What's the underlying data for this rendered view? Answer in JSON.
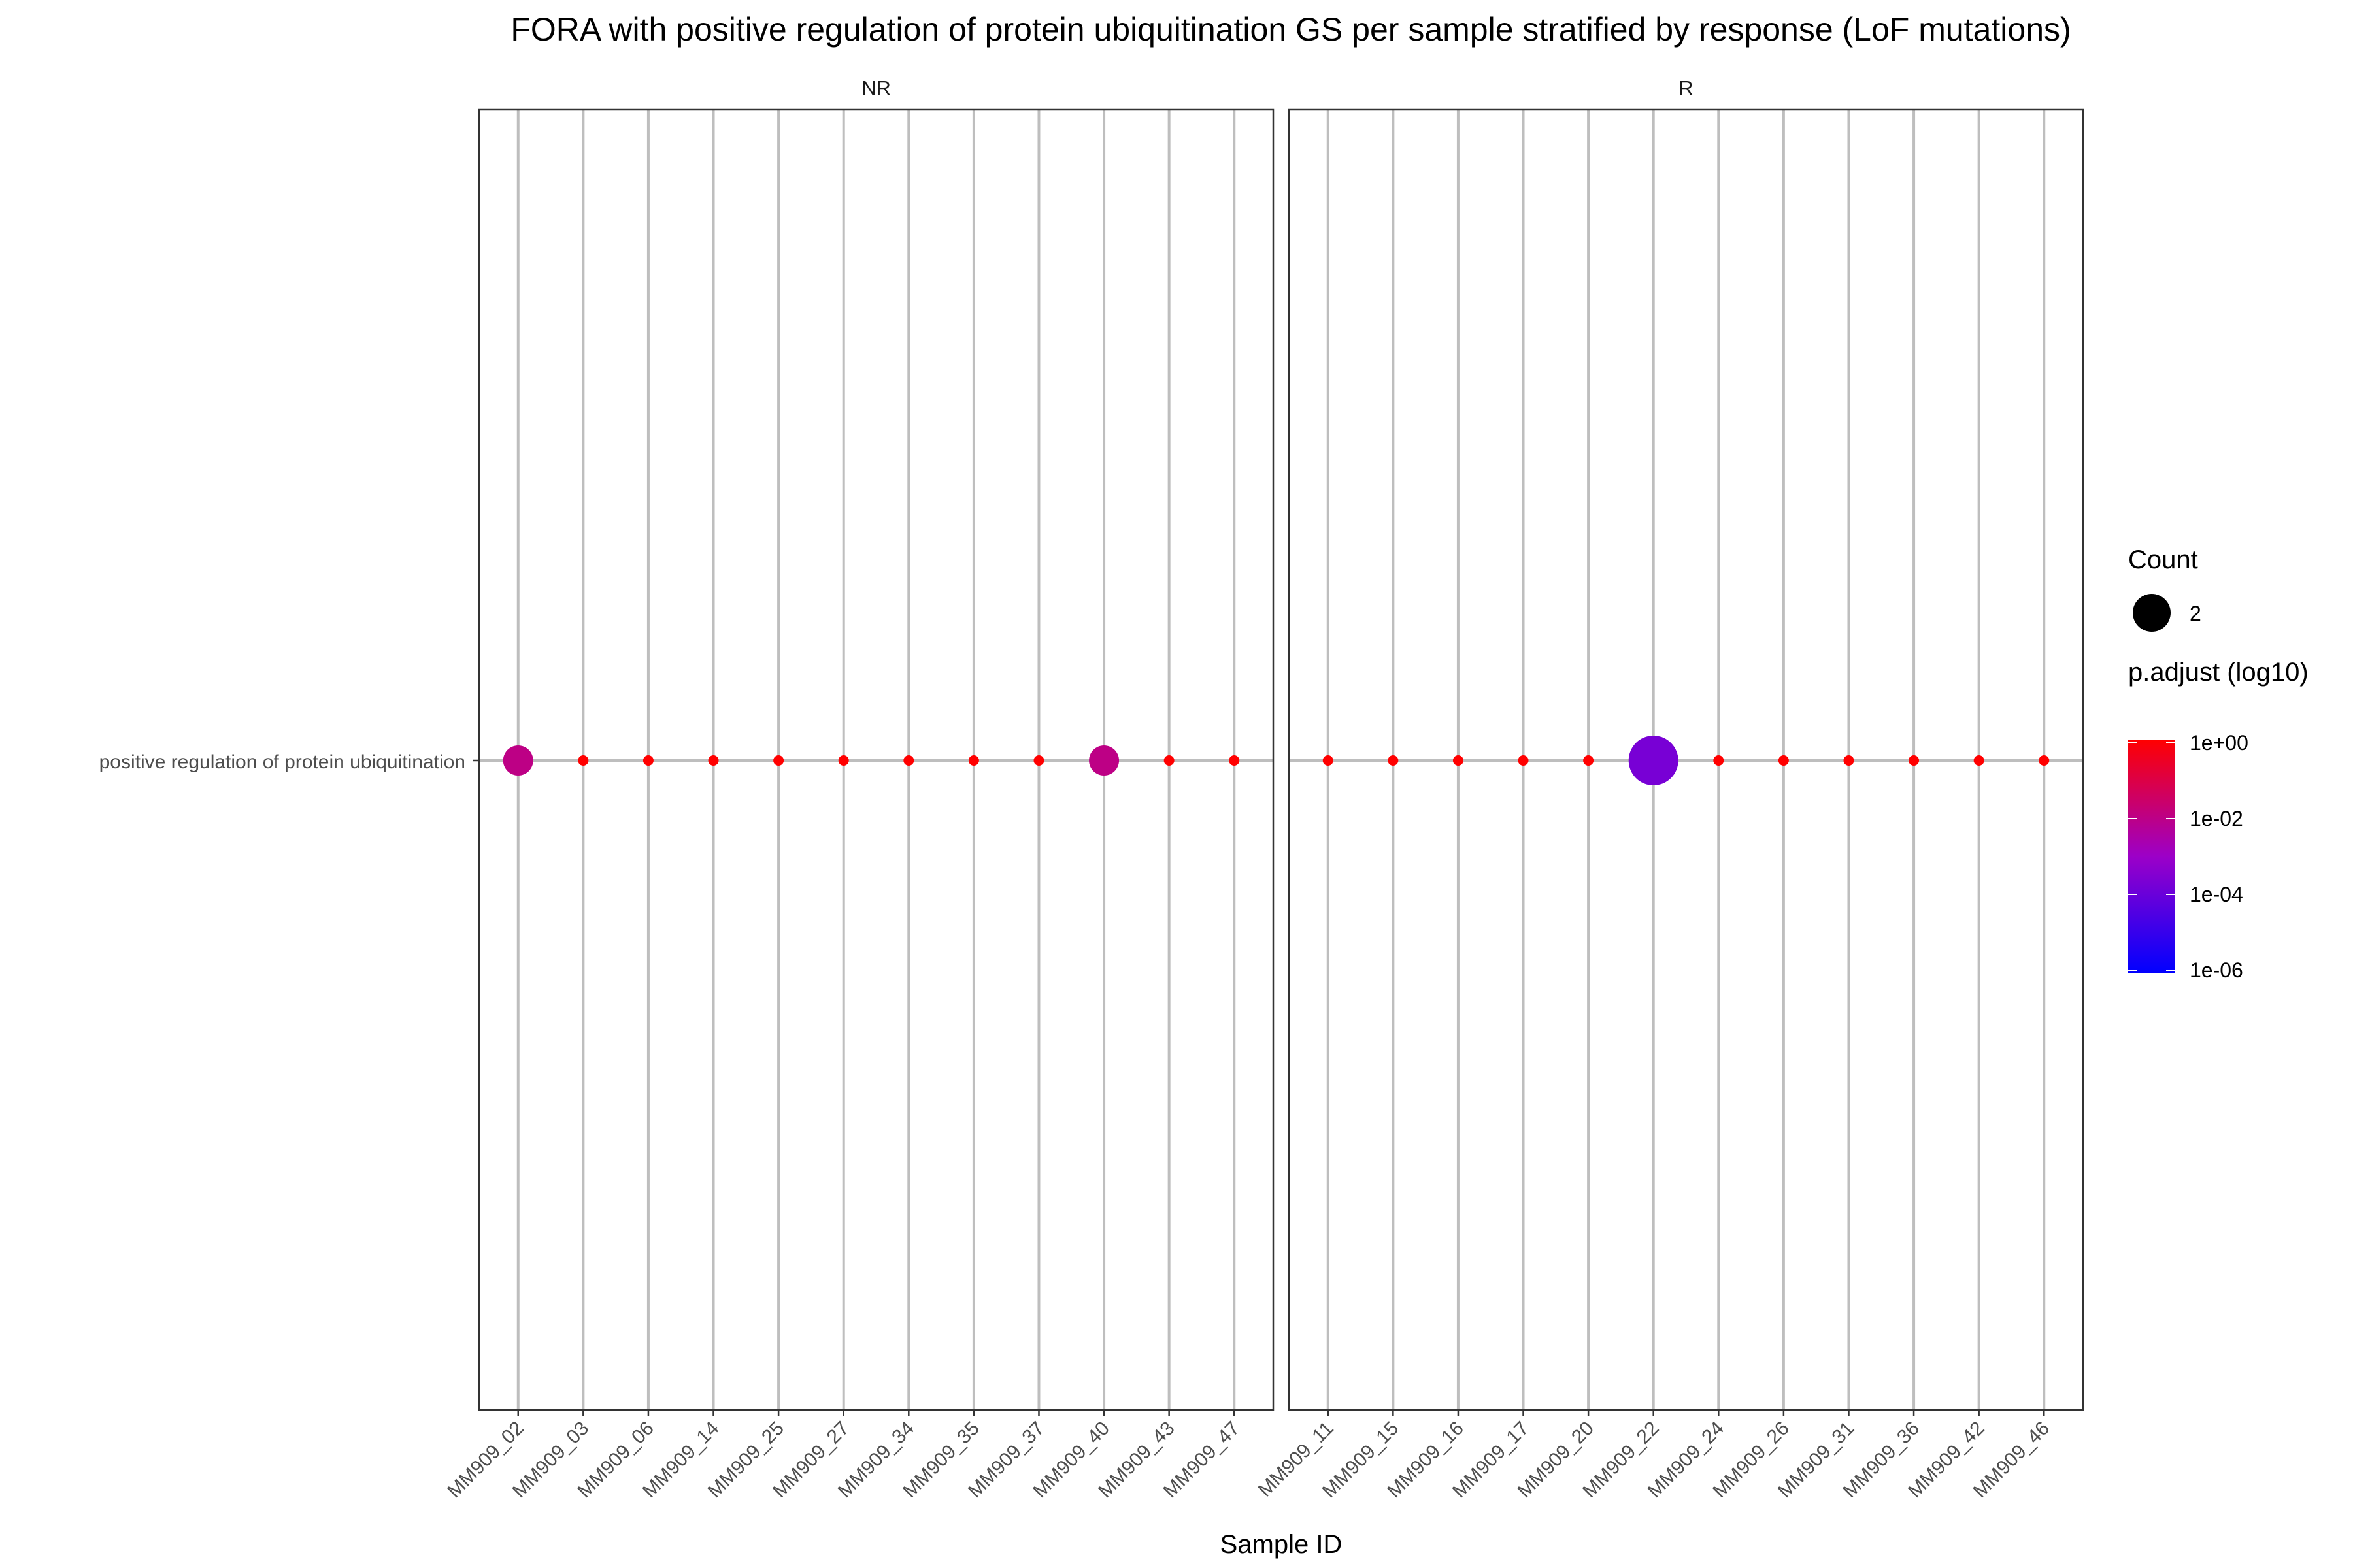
{
  "chart_data": {
    "type": "scatter",
    "title": "FORA with positive regulation of protein ubiquitination GS per sample stratified by response (LoF mutations)",
    "xlabel": "Sample ID",
    "ylabel": "",
    "y_categories": [
      "positive regulation of protein ubiquitination"
    ],
    "facets": [
      {
        "name": "NR",
        "categories": [
          "MM909_02",
          "MM909_03",
          "MM909_06",
          "MM909_14",
          "MM909_25",
          "MM909_27",
          "MM909_34",
          "MM909_35",
          "MM909_37",
          "MM909_40",
          "MM909_43",
          "MM909_47"
        ],
        "points": [
          {
            "sample": "MM909_02",
            "count": 2,
            "p_adjust": 0.01
          },
          {
            "sample": "MM909_03",
            "count": 0,
            "p_adjust": 1
          },
          {
            "sample": "MM909_06",
            "count": 0,
            "p_adjust": 1
          },
          {
            "sample": "MM909_14",
            "count": 0,
            "p_adjust": 1
          },
          {
            "sample": "MM909_25",
            "count": 0,
            "p_adjust": 1
          },
          {
            "sample": "MM909_27",
            "count": 0,
            "p_adjust": 1
          },
          {
            "sample": "MM909_34",
            "count": 0,
            "p_adjust": 1
          },
          {
            "sample": "MM909_35",
            "count": 0,
            "p_adjust": 1
          },
          {
            "sample": "MM909_37",
            "count": 0,
            "p_adjust": 1
          },
          {
            "sample": "MM909_40",
            "count": 2,
            "p_adjust": 0.01
          },
          {
            "sample": "MM909_43",
            "count": 0,
            "p_adjust": 1
          },
          {
            "sample": "MM909_47",
            "count": 0,
            "p_adjust": 1
          }
        ]
      },
      {
        "name": "R",
        "categories": [
          "MM909_11",
          "MM909_15",
          "MM909_16",
          "MM909_17",
          "MM909_20",
          "MM909_22",
          "MM909_24",
          "MM909_26",
          "MM909_31",
          "MM909_36",
          "MM909_42",
          "MM909_46"
        ],
        "points": [
          {
            "sample": "MM909_11",
            "count": 0,
            "p_adjust": 1
          },
          {
            "sample": "MM909_15",
            "count": 0,
            "p_adjust": 1
          },
          {
            "sample": "MM909_16",
            "count": 0,
            "p_adjust": 1
          },
          {
            "sample": "MM909_17",
            "count": 0,
            "p_adjust": 1
          },
          {
            "sample": "MM909_20",
            "count": 0,
            "p_adjust": 1
          },
          {
            "sample": "MM909_22",
            "count": 3,
            "p_adjust": 0.0002
          },
          {
            "sample": "MM909_24",
            "count": 0,
            "p_adjust": 1
          },
          {
            "sample": "MM909_26",
            "count": 0,
            "p_adjust": 1
          },
          {
            "sample": "MM909_31",
            "count": 0,
            "p_adjust": 1
          },
          {
            "sample": "MM909_36",
            "count": 0,
            "p_adjust": 1
          },
          {
            "sample": "MM909_42",
            "count": 0,
            "p_adjust": 1
          },
          {
            "sample": "MM909_46",
            "count": 0,
            "p_adjust": 1
          }
        ]
      }
    ],
    "grid": true,
    "legend": {
      "placement": "right",
      "size": {
        "title": "Count",
        "entries": [
          {
            "label": "2",
            "value": 2
          }
        ]
      },
      "color": {
        "title": "p.adjust (log10)",
        "scale": "log10",
        "range": [
          1e-06,
          1
        ],
        "ticks": [
          "1e+00",
          "1e-02",
          "1e-04",
          "1e-06"
        ],
        "tick_values": [
          1,
          0.01,
          0.0001,
          1e-06
        ],
        "low_color": "#0000ff",
        "high_color": "#ff0000"
      }
    }
  }
}
